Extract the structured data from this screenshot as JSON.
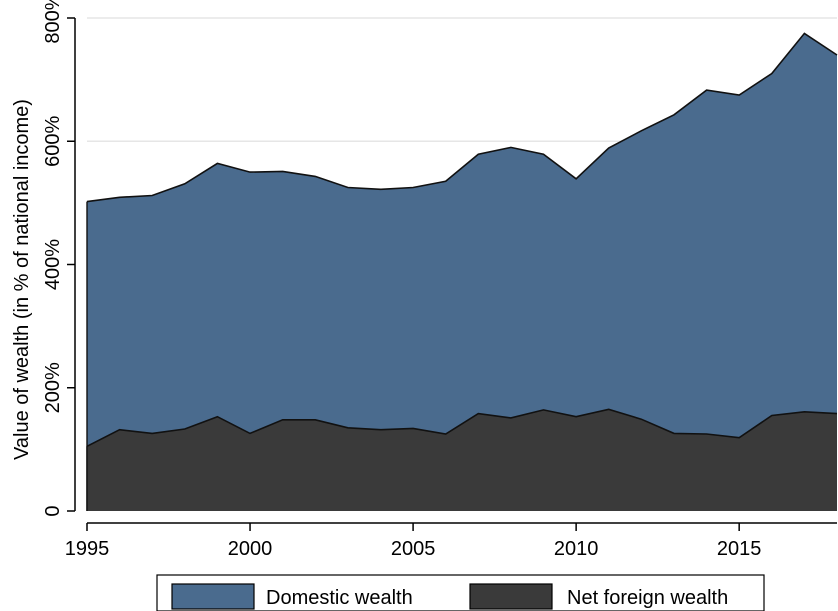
{
  "chart_data": {
    "type": "area",
    "stacked": false,
    "x": [
      1995,
      1996,
      1997,
      1998,
      1999,
      2000,
      2001,
      2002,
      2003,
      2004,
      2005,
      2006,
      2007,
      2008,
      2009,
      2010,
      2011,
      2012,
      2013,
      2014,
      2015,
      2016,
      2017,
      2018
    ],
    "series": [
      {
        "name": "Domestic wealth",
        "color": "#4a6b8e",
        "values": [
          502,
          509,
          512,
          531,
          564,
          550,
          551,
          543,
          525,
          522,
          525,
          535,
          579,
          590,
          579,
          539,
          589,
          617,
          643,
          683,
          675,
          710,
          775,
          740
        ]
      },
      {
        "name": "Net foreign wealth",
        "color": "#3a3a3a",
        "values": [
          105,
          132,
          126,
          133,
          153,
          126,
          148,
          148,
          135,
          132,
          134,
          125,
          158,
          151,
          164,
          153,
          165,
          149,
          126,
          125,
          119,
          155,
          161,
          158
        ]
      }
    ],
    "title": "",
    "xlabel": "",
    "ylabel": "Value of wealth (in % of national income)",
    "xlim": [
      1995,
      2018
    ],
    "ylim": [
      0,
      800
    ],
    "x_ticks": [
      1995,
      2000,
      2005,
      2010,
      2015
    ],
    "x_tick_labels": [
      "1995",
      "2000",
      "2005",
      "2010",
      "2015"
    ],
    "y_ticks": [
      0,
      200,
      400,
      600,
      800
    ],
    "y_tick_labels": [
      "0",
      "200%",
      "400%",
      "600%",
      "800%"
    ],
    "grid": "horizontal",
    "grid_color": "#e6e6e6",
    "legend_position": "bottom"
  }
}
